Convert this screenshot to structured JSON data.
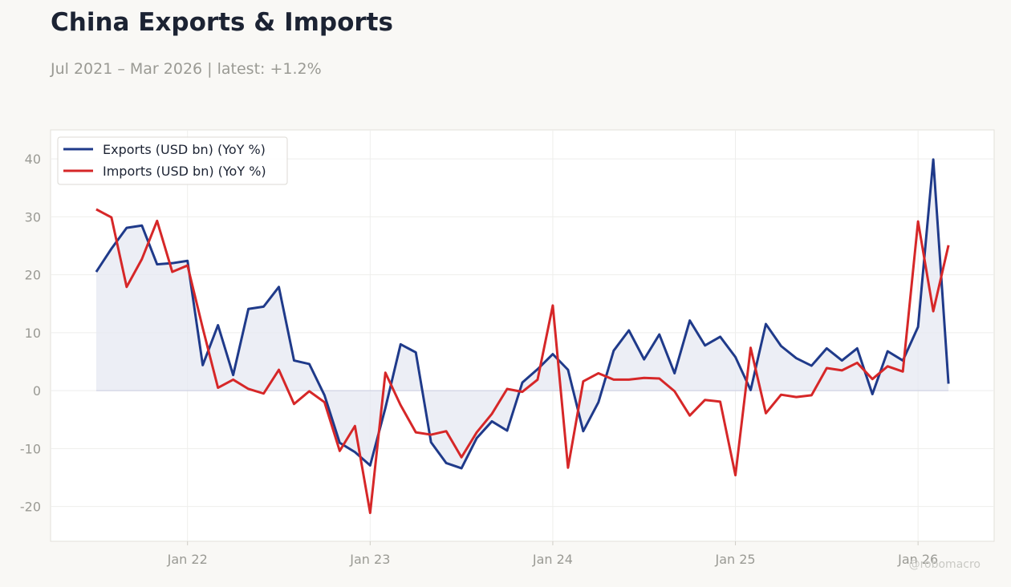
{
  "header": {
    "title": "China Exports & Imports",
    "subtitle": "Jul 2021 – Mar 2026 | latest: +1.2%"
  },
  "watermark": "@robomacro",
  "colors": {
    "exports": "#1f3a8a",
    "imports": "#d62728",
    "fill": "#e6e8f2",
    "grid": "#eeeeec",
    "axis_text": "#9a9a94"
  },
  "chart_data": {
    "type": "line",
    "xlabel": "",
    "ylabel": "",
    "ylim": [
      -26,
      45
    ],
    "y_ticks": [
      -20,
      -10,
      0,
      10,
      20,
      30,
      40
    ],
    "x_ticks": [
      {
        "date": "2022-01",
        "label": "Jan 22"
      },
      {
        "date": "2023-01",
        "label": "Jan 23"
      },
      {
        "date": "2024-01",
        "label": "Jan 24"
      },
      {
        "date": "2025-01",
        "label": "Jan 25"
      },
      {
        "date": "2026-01",
        "label": "Jan 26"
      }
    ],
    "x_range": [
      "2021-04",
      "2026-06"
    ],
    "grid": true,
    "legend_position": "top-left",
    "x": [
      "2021-07",
      "2021-08",
      "2021-09",
      "2021-10",
      "2021-11",
      "2021-12",
      "2022-01",
      "2022-02",
      "2022-03",
      "2022-04",
      "2022-05",
      "2022-06",
      "2022-07",
      "2022-08",
      "2022-09",
      "2022-10",
      "2022-11",
      "2022-12",
      "2023-01",
      "2023-02",
      "2023-03",
      "2023-04",
      "2023-05",
      "2023-06",
      "2023-07",
      "2023-08",
      "2023-09",
      "2023-10",
      "2023-11",
      "2023-12",
      "2024-01",
      "2024-02",
      "2024-03",
      "2024-04",
      "2024-05",
      "2024-06",
      "2024-07",
      "2024-08",
      "2024-09",
      "2024-10",
      "2024-11",
      "2024-12",
      "2025-01",
      "2025-02",
      "2025-03",
      "2025-04",
      "2025-05",
      "2025-06",
      "2025-07",
      "2025-08",
      "2025-09",
      "2025-10",
      "2025-11",
      "2025-12",
      "2026-01",
      "2026-02",
      "2026-03"
    ],
    "series": [
      {
        "name": "Exports (USD bn) (YoY %)",
        "color": "#1f3a8a",
        "filled": true,
        "values": [
          20.5,
          24.5,
          28.1,
          28.5,
          21.8,
          22.0,
          22.4,
          4.4,
          11.3,
          2.7,
          14.1,
          14.5,
          17.9,
          5.2,
          4.6,
          -0.8,
          -9.0,
          -10.6,
          -12.9,
          -3.0,
          8.0,
          6.6,
          -8.9,
          -12.5,
          -13.4,
          -8.2,
          -5.3,
          -6.9,
          1.4,
          3.7,
          6.3,
          3.6,
          -7.0,
          -2.0,
          6.9,
          10.4,
          5.4,
          9.7,
          3.0,
          12.1,
          7.8,
          9.3,
          5.8,
          0.1,
          11.5,
          7.7,
          5.6,
          4.3,
          7.3,
          5.2,
          7.3,
          -0.6,
          6.8,
          5.2,
          11.0,
          39.9,
          1.2
        ]
      },
      {
        "name": "Imports (USD bn) (YoY %)",
        "color": "#d62728",
        "filled": false,
        "values": [
          31.3,
          29.9,
          17.9,
          22.7,
          29.3,
          20.5,
          21.6,
          10.8,
          0.5,
          1.9,
          0.3,
          -0.5,
          3.6,
          -2.3,
          -0.1,
          -2.0,
          -10.4,
          -6.1,
          -21.1,
          3.1,
          -2.5,
          -7.2,
          -7.6,
          -7.0,
          -11.5,
          -7.2,
          -4.0,
          0.3,
          -0.2,
          1.9,
          14.7,
          -13.3,
          1.6,
          3.0,
          1.9,
          1.9,
          2.2,
          2.1,
          -0.1,
          -4.3,
          -1.6,
          -1.9,
          -14.6,
          7.4,
          -3.9,
          -0.7,
          -1.1,
          -0.8,
          3.9,
          3.5,
          4.8,
          2.0,
          4.2,
          3.3,
          29.2,
          13.7,
          25.1
        ]
      }
    ]
  }
}
